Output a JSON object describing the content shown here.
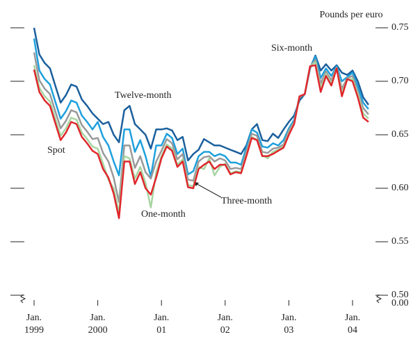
{
  "chart_data": {
    "type": "line",
    "y_axis_label": "Pounds per euro",
    "axis_break_label": "0.00",
    "ylim": [
      0.5,
      0.75
    ],
    "yticks": [
      {
        "value": 0.5,
        "label": "0.50"
      },
      0.55,
      {
        "value": 0.6,
        "label": "0.60"
      },
      0.65,
      {
        "value": 0.7,
        "label": "0.70"
      },
      0.75
    ],
    "xticks": [
      {
        "value": "1999-01",
        "label": [
          "Jan.",
          "1999"
        ]
      },
      {
        "value": "2000-01",
        "label": [
          "Jan.",
          "2000"
        ]
      },
      {
        "value": "2001-01",
        "label": [
          "Jan.",
          "01"
        ]
      },
      {
        "value": "2002-01",
        "label": [
          "Jan.",
          "02"
        ]
      },
      {
        "value": "2003-01",
        "label": [
          "Jan.",
          "03"
        ]
      },
      {
        "value": "2004-01",
        "label": [
          "Jan.",
          "04"
        ]
      }
    ],
    "x": [
      "1999-01",
      "1999-02",
      "1999-03",
      "1999-04",
      "1999-05",
      "1999-06",
      "1999-07",
      "1999-08",
      "1999-09",
      "1999-10",
      "1999-11",
      "1999-12",
      "2000-01",
      "2000-02",
      "2000-03",
      "2000-04",
      "2000-05",
      "2000-06",
      "2000-07",
      "2000-08",
      "2000-09",
      "2000-10",
      "2000-11",
      "2000-12",
      "2001-01",
      "2001-02",
      "2001-03",
      "2001-04",
      "2001-05",
      "2001-06",
      "2001-07",
      "2001-08",
      "2001-09",
      "2001-10",
      "2001-11",
      "2001-12",
      "2002-01",
      "2002-02",
      "2002-03",
      "2002-04",
      "2002-05",
      "2002-06",
      "2002-07",
      "2002-08",
      "2002-09",
      "2002-10",
      "2002-11",
      "2002-12",
      "2003-01",
      "2003-02",
      "2003-03",
      "2003-04",
      "2003-05",
      "2003-06",
      "2003-07",
      "2003-08",
      "2003-09",
      "2003-10",
      "2003-11",
      "2003-12",
      "2004-01",
      "2004-02",
      "2004-03",
      "2004-04"
    ],
    "series": [
      {
        "name": "Twelve-month",
        "color": "#1a5f9c",
        "values": [
          0.75,
          0.725,
          0.717,
          0.712,
          0.696,
          0.68,
          0.687,
          0.697,
          0.695,
          0.683,
          0.677,
          0.67,
          0.665,
          0.66,
          0.662,
          0.65,
          0.643,
          0.673,
          0.677,
          0.66,
          0.655,
          0.65,
          0.637,
          0.655,
          0.655,
          0.656,
          0.654,
          0.645,
          0.648,
          0.626,
          0.632,
          0.636,
          0.646,
          0.643,
          0.64,
          0.64,
          0.638,
          0.636,
          0.634,
          0.632,
          0.64,
          0.655,
          0.66,
          0.645,
          0.644,
          0.651,
          0.647,
          0.655,
          0.662,
          0.668,
          0.682,
          0.688,
          0.712,
          0.724,
          0.71,
          0.716,
          0.71,
          0.715,
          0.708,
          0.706,
          0.71,
          0.7,
          0.685,
          0.678
        ]
      },
      {
        "name": "Six-month",
        "color": "#1ea0dc",
        "values": [
          0.74,
          0.71,
          0.702,
          0.697,
          0.681,
          0.665,
          0.672,
          0.682,
          0.68,
          0.668,
          0.662,
          0.655,
          0.662,
          0.648,
          0.64,
          0.625,
          0.612,
          0.655,
          0.655,
          0.634,
          0.645,
          0.63,
          0.611,
          0.64,
          0.64,
          0.651,
          0.647,
          0.632,
          0.637,
          0.613,
          0.616,
          0.63,
          0.634,
          0.634,
          0.63,
          0.632,
          0.63,
          0.624,
          0.624,
          0.622,
          0.638,
          0.655,
          0.652,
          0.639,
          0.638,
          0.642,
          0.64,
          0.645,
          0.656,
          0.664,
          0.685,
          0.688,
          0.712,
          0.723,
          0.703,
          0.712,
          0.705,
          0.714,
          0.7,
          0.704,
          0.708,
          0.695,
          0.68,
          0.674
        ]
      },
      {
        "name": "Three-month",
        "color": "#999999",
        "values": [
          0.727,
          0.701,
          0.693,
          0.688,
          0.672,
          0.656,
          0.663,
          0.673,
          0.671,
          0.659,
          0.653,
          0.646,
          0.647,
          0.633,
          0.625,
          0.61,
          0.587,
          0.64,
          0.64,
          0.619,
          0.63,
          0.615,
          0.609,
          0.625,
          0.635,
          0.646,
          0.642,
          0.627,
          0.632,
          0.608,
          0.607,
          0.625,
          0.629,
          0.63,
          0.625,
          0.628,
          0.626,
          0.618,
          0.619,
          0.618,
          0.634,
          0.651,
          0.649,
          0.634,
          0.633,
          0.637,
          0.638,
          0.641,
          0.654,
          0.662,
          0.685,
          0.688,
          0.713,
          0.72,
          0.698,
          0.709,
          0.701,
          0.713,
          0.693,
          0.703,
          0.705,
          0.69,
          0.675,
          0.669
        ]
      },
      {
        "name": "One-month",
        "color": "#a8d5a2",
        "values": [
          0.715,
          0.694,
          0.686,
          0.681,
          0.665,
          0.649,
          0.656,
          0.666,
          0.664,
          0.652,
          0.646,
          0.639,
          0.637,
          0.623,
          0.608,
          0.6,
          0.577,
          0.63,
          0.628,
          0.609,
          0.62,
          0.605,
          0.582,
          0.615,
          0.63,
          0.641,
          0.637,
          0.622,
          0.627,
          0.603,
          0.602,
          0.62,
          0.618,
          0.628,
          0.612,
          0.62,
          0.623,
          0.614,
          0.616,
          0.615,
          0.631,
          0.648,
          0.645,
          0.631,
          0.628,
          0.634,
          0.636,
          0.639,
          0.651,
          0.661,
          0.686,
          0.688,
          0.714,
          0.718,
          0.693,
          0.707,
          0.698,
          0.712,
          0.689,
          0.702,
          0.702,
          0.688,
          0.67,
          0.665
        ]
      },
      {
        "name": "Spot",
        "color": "#e0262b",
        "values": [
          0.711,
          0.69,
          0.682,
          0.677,
          0.661,
          0.645,
          0.652,
          0.662,
          0.66,
          0.648,
          0.642,
          0.635,
          0.632,
          0.618,
          0.61,
          0.595,
          0.572,
          0.625,
          0.625,
          0.604,
          0.615,
          0.6,
          0.594,
          0.61,
          0.628,
          0.639,
          0.635,
          0.62,
          0.625,
          0.601,
          0.6,
          0.618,
          0.622,
          0.625,
          0.618,
          0.622,
          0.622,
          0.613,
          0.615,
          0.614,
          0.63,
          0.647,
          0.645,
          0.63,
          0.63,
          0.632,
          0.635,
          0.638,
          0.65,
          0.66,
          0.686,
          0.688,
          0.714,
          0.715,
          0.69,
          0.705,
          0.696,
          0.712,
          0.686,
          0.702,
          0.7,
          0.685,
          0.666,
          0.662
        ]
      }
    ]
  }
}
